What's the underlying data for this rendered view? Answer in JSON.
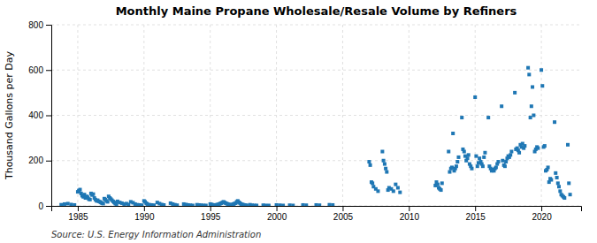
{
  "chart_data": {
    "type": "scatter",
    "title": "Monthly Maine Propane Wholesale/Resale Volume by Refiners",
    "ylabel": "Thousand Gallons per Day",
    "source": "Source: U.S. Energy Information Administration",
    "marker": "square",
    "grid": true,
    "xlim": [
      1983.0,
      2023.0
    ],
    "ylim": [
      0,
      800
    ],
    "xticks": [
      1985,
      1990,
      1995,
      2000,
      2005,
      2010,
      2015,
      2020
    ],
    "yticks": [
      0,
      200,
      400,
      600,
      800
    ],
    "x": [
      1983.75,
      1984.0,
      1984.25,
      1984.5,
      1984.75,
      1985.0,
      1985.08,
      1985.17,
      1985.25,
      1985.33,
      1985.42,
      1985.5,
      1985.58,
      1985.67,
      1985.75,
      1985.83,
      1985.92,
      1986.0,
      1986.08,
      1986.17,
      1986.25,
      1986.33,
      1986.42,
      1986.5,
      1986.58,
      1986.67,
      1986.75,
      1986.83,
      1986.92,
      1987.0,
      1987.08,
      1987.17,
      1987.25,
      1987.33,
      1987.42,
      1987.5,
      1987.58,
      1987.67,
      1987.75,
      1987.83,
      1987.92,
      1988.0,
      1988.17,
      1988.33,
      1988.5,
      1988.67,
      1988.83,
      1989.0,
      1989.17,
      1989.33,
      1989.5,
      1989.67,
      1989.83,
      1990.0,
      1990.08,
      1990.17,
      1990.25,
      1990.42,
      1990.58,
      1990.75,
      1991.0,
      1991.17,
      1991.33,
      1991.5,
      1992.0,
      1992.17,
      1992.33,
      1992.5,
      1993.0,
      1993.17,
      1993.33,
      1993.5,
      1993.67,
      1994.0,
      1994.17,
      1994.33,
      1994.5,
      1994.67,
      1995.0,
      1995.08,
      1995.17,
      1995.25,
      1995.33,
      1995.42,
      1995.5,
      1995.58,
      1995.67,
      1995.75,
      1995.83,
      1995.92,
      1996.0,
      1996.08,
      1996.17,
      1996.25,
      1996.33,
      1996.42,
      1996.5,
      1996.58,
      1996.67,
      1996.75,
      1996.83,
      1996.92,
      1997.0,
      1997.08,
      1997.17,
      1997.25,
      1997.33,
      1997.42,
      1997.5,
      1997.58,
      1997.67,
      1997.75,
      1998.0,
      1998.17,
      1998.33,
      1998.5,
      1999.0,
      1999.17,
      1999.42,
      2000.0,
      2000.25,
      2000.5,
      2001.0,
      2001.25,
      2002.0,
      2002.25,
      2003.0,
      2003.25,
      2004.0,
      2004.25,
      2007.0,
      2007.08,
      2007.17,
      2007.25,
      2007.33,
      2007.5,
      2007.67,
      2008.0,
      2008.08,
      2008.17,
      2008.25,
      2008.33,
      2008.42,
      2008.5,
      2008.67,
      2008.83,
      2009.0,
      2009.17,
      2009.33,
      2012.0,
      2012.08,
      2012.17,
      2012.25,
      2012.33,
      2012.42,
      2012.5,
      2013.0,
      2013.08,
      2013.17,
      2013.25,
      2013.33,
      2013.42,
      2013.5,
      2013.58,
      2013.67,
      2013.75,
      2014.0,
      2014.08,
      2014.17,
      2014.25,
      2014.33,
      2014.42,
      2014.5,
      2014.58,
      2014.67,
      2014.75,
      2015.0,
      2015.08,
      2015.17,
      2015.25,
      2015.33,
      2015.42,
      2015.5,
      2015.58,
      2015.67,
      2015.75,
      2016.0,
      2016.08,
      2016.17,
      2016.25,
      2016.33,
      2016.42,
      2016.5,
      2016.58,
      2016.67,
      2016.75,
      2017.0,
      2017.08,
      2017.17,
      2017.25,
      2017.33,
      2017.42,
      2017.5,
      2017.58,
      2017.67,
      2017.75,
      2018.0,
      2018.08,
      2018.17,
      2018.25,
      2018.33,
      2018.42,
      2018.5,
      2018.58,
      2018.67,
      2018.75,
      2019.0,
      2019.08,
      2019.17,
      2019.25,
      2019.33,
      2019.42,
      2019.5,
      2019.58,
      2019.67,
      2019.75,
      2020.0,
      2020.08,
      2020.17,
      2020.25,
      2020.33,
      2020.42,
      2020.5,
      2020.58,
      2020.67,
      2020.75,
      2021.0,
      2021.08,
      2021.17,
      2021.25,
      2021.33,
      2021.42,
      2021.5,
      2021.58,
      2021.67,
      2021.75,
      2022.0,
      2022.08,
      2022.17
    ],
    "values": [
      5,
      8,
      10,
      6,
      4,
      62,
      68,
      72,
      55,
      45,
      40,
      50,
      35,
      42,
      38,
      30,
      28,
      55,
      48,
      52,
      35,
      28,
      22,
      25,
      20,
      18,
      15,
      12,
      10,
      32,
      28,
      22,
      18,
      42,
      35,
      30,
      25,
      20,
      15,
      10,
      8,
      20,
      15,
      12,
      8,
      10,
      6,
      18,
      14,
      8,
      5,
      4,
      3,
      22,
      18,
      12,
      8,
      5,
      4,
      3,
      15,
      10,
      6,
      4,
      12,
      8,
      5,
      3,
      8,
      6,
      4,
      3,
      2,
      5,
      4,
      3,
      2,
      2,
      8,
      6,
      5,
      4,
      3,
      4,
      5,
      6,
      8,
      10,
      12,
      15,
      18,
      15,
      12,
      10,
      8,
      6,
      5,
      4,
      6,
      8,
      10,
      12,
      18,
      22,
      16,
      12,
      8,
      6,
      5,
      4,
      3,
      2,
      5,
      3,
      2,
      2,
      3,
      2,
      2,
      4,
      3,
      2,
      3,
      2,
      4,
      3,
      4,
      3,
      5,
      4,
      195,
      180,
      105,
      100,
      85,
      75,
      65,
      240,
      200,
      185,
      165,
      150,
      70,
      80,
      75,
      65,
      95,
      80,
      60,
      90,
      105,
      95,
      80,
      75,
      70,
      100,
      240,
      150,
      165,
      170,
      320,
      155,
      165,
      175,
      195,
      215,
      390,
      250,
      240,
      220,
      200,
      210,
      225,
      185,
      175,
      165,
      480,
      220,
      175,
      190,
      210,
      195,
      185,
      175,
      215,
      235,
      390,
      175,
      165,
      155,
      160,
      155,
      165,
      170,
      185,
      195,
      440,
      200,
      180,
      175,
      195,
      210,
      220,
      215,
      225,
      240,
      500,
      250,
      255,
      245,
      235,
      270,
      260,
      275,
      255,
      265,
      610,
      580,
      390,
      440,
      525,
      400,
      240,
      250,
      260,
      255,
      600,
      530,
      260,
      265,
      155,
      160,
      170,
      105,
      120,
      115,
      370,
      145,
      125,
      100,
      85,
      65,
      50,
      45,
      40,
      35,
      270,
      100,
      50
    ]
  }
}
